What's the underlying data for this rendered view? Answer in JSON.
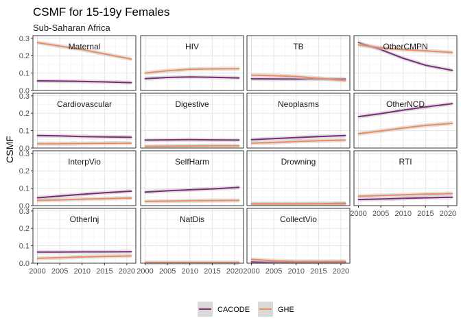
{
  "chart_data": {
    "type": "line",
    "title": "CSMF for 15-19y Females",
    "subtitle": "Sub-Saharan Africa",
    "xlabel": "",
    "ylabel": "CSMF",
    "xlim": [
      1999,
      2022
    ],
    "ylim": [
      0,
      0.315
    ],
    "x_ticks": [
      2000,
      2005,
      2010,
      2015,
      2020
    ],
    "y_ticks": [
      0.0,
      0.1,
      0.2,
      0.3
    ],
    "y_tick_labels": [
      "0.0",
      "0.1",
      "0.2",
      "0.3"
    ],
    "grid": true,
    "legend_position": "bottom",
    "colors": {
      "CACODE": "#7b2a7b",
      "GHE": "#f08a5d",
      "band": "#c8c8c8"
    },
    "x": [
      2000,
      2005,
      2010,
      2015,
      2021
    ],
    "panels": [
      {
        "label": "Maternal",
        "series": [
          {
            "name": "CACODE",
            "values": [
              0.055,
              0.054,
              0.052,
              0.049,
              0.045
            ]
          },
          {
            "name": "GHE",
            "values": [
              0.275,
              0.255,
              0.235,
              0.21,
              0.18
            ]
          }
        ]
      },
      {
        "label": "HIV",
        "series": [
          {
            "name": "CACODE",
            "values": [
              0.068,
              0.075,
              0.078,
              0.076,
              0.072
            ]
          },
          {
            "name": "GHE",
            "values": [
              0.1,
              0.113,
              0.122,
              0.124,
              0.125
            ]
          }
        ]
      },
      {
        "label": "TB",
        "series": [
          {
            "name": "CACODE",
            "values": [
              0.067,
              0.066,
              0.066,
              0.066,
              0.066
            ]
          },
          {
            "name": "GHE",
            "values": [
              0.088,
              0.085,
              0.08,
              0.07,
              0.057
            ]
          }
        ]
      },
      {
        "label": "OtherCMPN",
        "series": [
          {
            "name": "CACODE",
            "values": [
              0.275,
              0.235,
              0.185,
              0.145,
              0.115
            ]
          },
          {
            "name": "GHE",
            "values": [
              0.262,
              0.245,
              0.235,
              0.228,
              0.218
            ]
          }
        ]
      },
      {
        "label": "Cardiovascular",
        "series": [
          {
            "name": "CACODE",
            "values": [
              0.072,
              0.07,
              0.066,
              0.064,
              0.062
            ]
          },
          {
            "name": "GHE",
            "values": [
              0.025,
              0.025,
              0.026,
              0.027,
              0.028
            ]
          }
        ]
      },
      {
        "label": "Digestive",
        "series": [
          {
            "name": "CACODE",
            "values": [
              0.046,
              0.047,
              0.048,
              0.047,
              0.046
            ]
          },
          {
            "name": "GHE",
            "values": [
              0.01,
              0.011,
              0.012,
              0.013,
              0.013
            ]
          }
        ]
      },
      {
        "label": "Neoplasms",
        "series": [
          {
            "name": "CACODE",
            "values": [
              0.048,
              0.054,
              0.06,
              0.066,
              0.072
            ]
          },
          {
            "name": "GHE",
            "values": [
              0.028,
              0.032,
              0.038,
              0.042,
              0.046
            ]
          }
        ]
      },
      {
        "label": "OtherNCD",
        "series": [
          {
            "name": "CACODE",
            "values": [
              0.18,
              0.198,
              0.218,
              0.236,
              0.255
            ]
          },
          {
            "name": "GHE",
            "values": [
              0.082,
              0.098,
              0.115,
              0.13,
              0.142
            ]
          }
        ]
      },
      {
        "label": "InterpVio",
        "series": [
          {
            "name": "CACODE",
            "values": [
              0.045,
              0.055,
              0.065,
              0.074,
              0.083
            ]
          },
          {
            "name": "GHE",
            "values": [
              0.03,
              0.033,
              0.037,
              0.04,
              0.044
            ]
          }
        ]
      },
      {
        "label": "SelfHarm",
        "series": [
          {
            "name": "CACODE",
            "values": [
              0.078,
              0.085,
              0.091,
              0.096,
              0.105
            ]
          },
          {
            "name": "GHE",
            "values": [
              0.024,
              0.026,
              0.028,
              0.029,
              0.03
            ]
          }
        ]
      },
      {
        "label": "Drowning",
        "series": [
          {
            "name": "CACODE",
            "values": [
              0.01,
              0.01,
              0.01,
              0.011,
              0.014
            ]
          },
          {
            "name": "GHE",
            "values": [
              0.011,
              0.011,
              0.011,
              0.011,
              0.01
            ]
          }
        ]
      },
      {
        "label": "RTI",
        "series": [
          {
            "name": "CACODE",
            "values": [
              0.035,
              0.038,
              0.042,
              0.045,
              0.048
            ]
          },
          {
            "name": "GHE",
            "values": [
              0.054,
              0.058,
              0.062,
              0.066,
              0.069
            ]
          }
        ]
      },
      {
        "label": "OtherInj",
        "series": [
          {
            "name": "CACODE",
            "values": [
              0.064,
              0.064,
              0.065,
              0.065,
              0.066
            ]
          },
          {
            "name": "GHE",
            "values": [
              0.028,
              0.032,
              0.036,
              0.039,
              0.042
            ]
          }
        ]
      },
      {
        "label": "NatDis",
        "series": [
          {
            "name": "CACODE",
            "values": [
              0.002,
              0.002,
              0.002,
              0.002,
              0.002
            ]
          },
          {
            "name": "GHE",
            "values": [
              0.003,
              0.003,
              0.003,
              0.003,
              0.003
            ]
          }
        ]
      },
      {
        "label": "CollectVio",
        "series": [
          {
            "name": "CACODE",
            "values": [
              0.008,
              0.006,
              0.005,
              0.005,
              0.005
            ]
          },
          {
            "name": "GHE",
            "values": [
              0.022,
              0.014,
              0.01,
              0.01,
              0.011
            ]
          }
        ]
      }
    ],
    "legend": [
      {
        "name": "CACODE"
      },
      {
        "name": "GHE"
      }
    ]
  }
}
